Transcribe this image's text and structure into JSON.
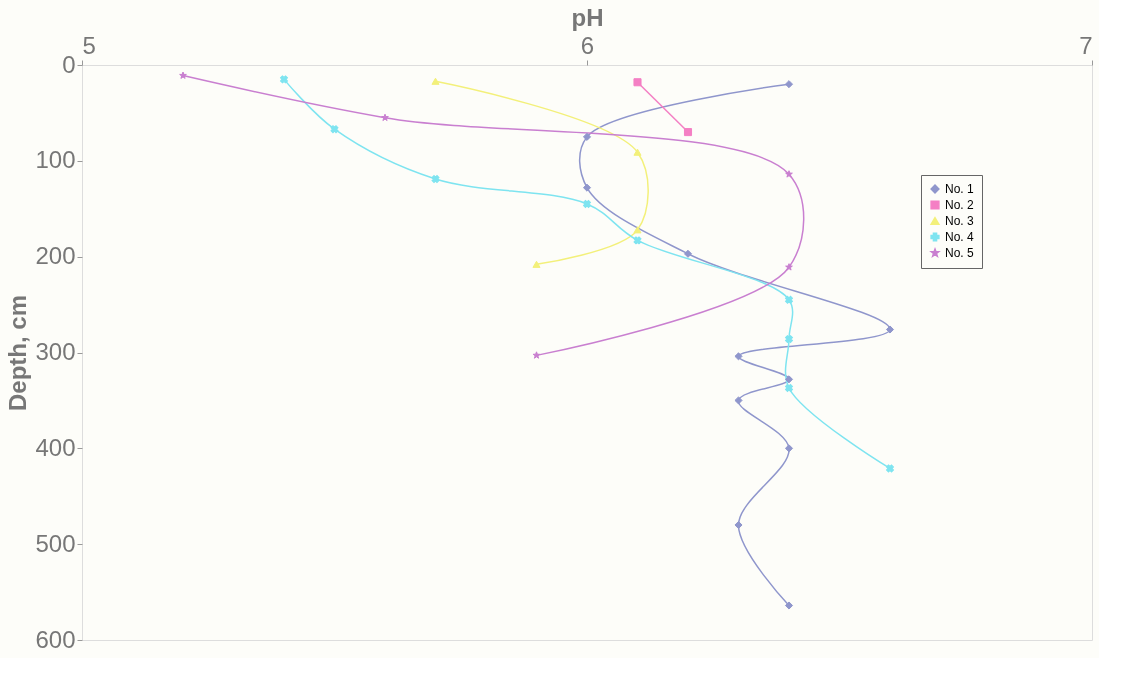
{
  "chart_data": {
    "type": "line",
    "xlabel": "pH",
    "ylabel": "Depth, cm",
    "xlim": [
      5,
      7
    ],
    "xticks": [
      5,
      6,
      7
    ],
    "ylim": [
      600,
      0
    ],
    "yticks": [
      0,
      100,
      200,
      300,
      400,
      500,
      600
    ],
    "grid": false,
    "legend": "top right",
    "line_style": "solid",
    "series": [
      {
        "name": "No. 1",
        "color": "#8f96cc",
        "marker": "diamond",
        "x": [
          6.4,
          6.0,
          6.0,
          6.2,
          6.6,
          6.3,
          6.4,
          6.3,
          6.4,
          6.3,
          6.4
        ],
        "values": [
          20,
          75,
          128,
          197,
          276,
          304,
          328,
          350,
          400,
          480,
          564
        ]
      },
      {
        "name": "No. 2",
        "color": "#f47fc4",
        "marker": "square",
        "x": [
          6.1,
          6.2
        ],
        "values": [
          18,
          70
        ]
      },
      {
        "name": "No. 3",
        "color": "#f3f07a",
        "marker": "triangle",
        "x": [
          5.7,
          6.1,
          6.1,
          5.9
        ],
        "values": [
          17,
          91,
          172,
          208
        ]
      },
      {
        "name": "No. 4",
        "color": "#7ee4f0",
        "marker": "cross",
        "x": [
          5.4,
          5.5,
          5.7,
          6.0,
          6.1,
          6.4,
          6.4,
          6.4,
          6.6
        ],
        "values": [
          15,
          67,
          119,
          145,
          183,
          245,
          286,
          337,
          421
        ]
      },
      {
        "name": "No. 5",
        "color": "#c97fd0",
        "marker": "star",
        "x": [
          5.2,
          5.6,
          6.4,
          6.4,
          5.9
        ],
        "values": [
          11,
          55,
          114,
          211,
          303
        ]
      }
    ]
  }
}
